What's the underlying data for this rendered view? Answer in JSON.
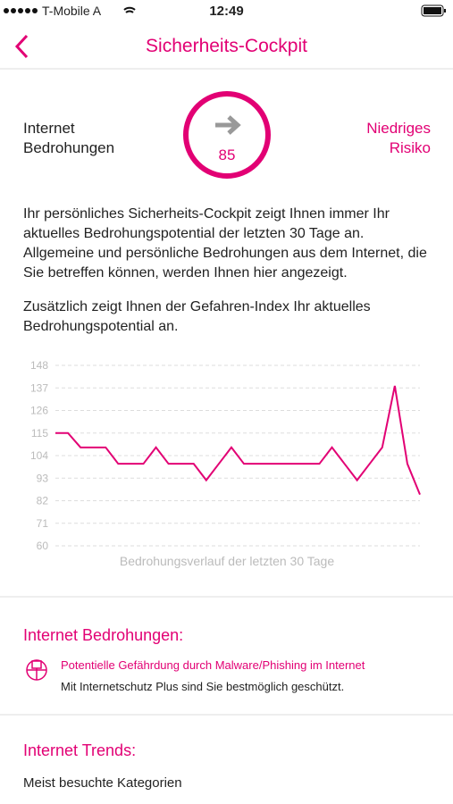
{
  "status_bar": {
    "carrier": "T-Mobile A",
    "time": "12:49"
  },
  "header": {
    "title": "Sicherheits-Cockpit"
  },
  "summary": {
    "label_lines": [
      "Internet",
      "Bedrohungen"
    ],
    "index": 85,
    "risk_lines": [
      "Niedriges",
      "Risiko"
    ]
  },
  "intro": [
    "Ihr persönliches Sicherheits-Cockpit zeigt Ihnen immer Ihr aktuelles Bedrohungspotential der letzten 30 Tage an. Allgemeine und persönliche Bedrohungen aus dem Internet, die Sie betreffen können, werden Ihnen hier angezeigt.",
    "Zusätzlich zeigt Ihnen der Gefahren-Index Ihr aktuelles Bedrohungspotential an."
  ],
  "chart_data": {
    "type": "line",
    "xlabel": "Bedrohungsverlauf der letzten 30 Tage",
    "color": "#e20074",
    "grid": true,
    "values": [
      115,
      115,
      108,
      108,
      108,
      100,
      100,
      100,
      108,
      100,
      100,
      100,
      92,
      100,
      108,
      100,
      100,
      100,
      100,
      100,
      100,
      100,
      108,
      100,
      92,
      100,
      108,
      138,
      100,
      85
    ],
    "ylim": [
      60,
      148
    ],
    "yticks": [
      60,
      71,
      82,
      93,
      104,
      115,
      126,
      137,
      148
    ]
  },
  "threats": {
    "title": "Internet Bedrohungen:",
    "item_title": "Potentielle Gefährdung durch Malware/Phishing im Internet",
    "item_text": "Mit Internetschutz Plus sind Sie bestmöglich geschützt."
  },
  "trends": {
    "title": "Internet Trends:",
    "subtitle": "Meist besuchte Kategorien"
  }
}
